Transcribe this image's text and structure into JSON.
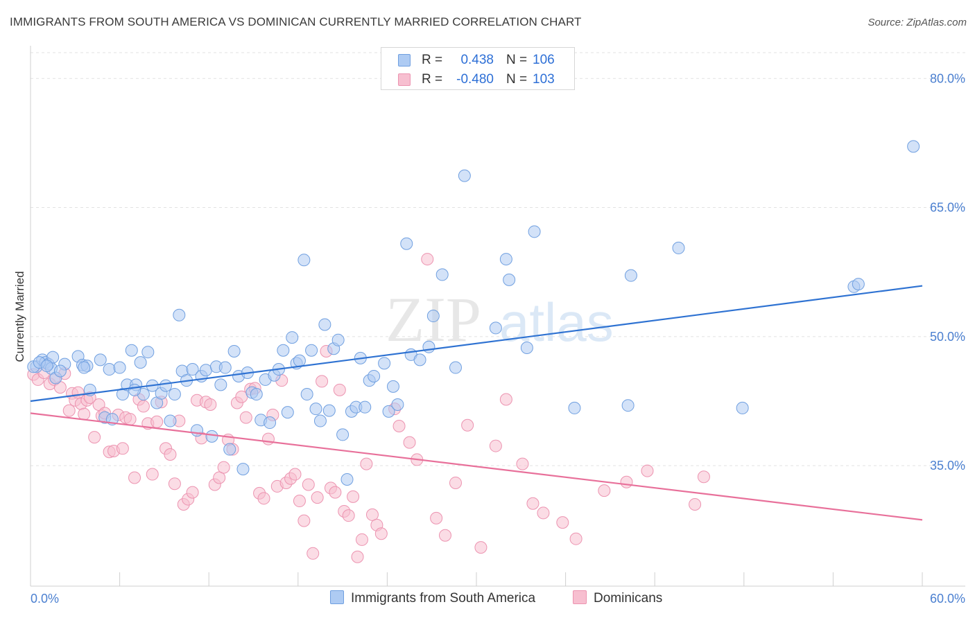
{
  "title": "IMMIGRANTS FROM SOUTH AMERICA VS DOMINICAN CURRENTLY MARRIED CORRELATION CHART",
  "source": "Source: ZipAtlas.com",
  "watermark": {
    "zip": "ZIP",
    "atlas": "atlas"
  },
  "legend": {
    "rows": [
      {
        "r_label": "R =",
        "r_value": "0.438",
        "n_label": "N =",
        "n_value": "106"
      },
      {
        "r_label": "R =",
        "r_value": "-0.480",
        "n_label": "N =",
        "n_value": "103"
      }
    ]
  },
  "bottom_legend": {
    "blue": "Immigrants from South America",
    "pink": "Dominicans"
  },
  "colors": {
    "blue_fill": "#aecbf3",
    "blue_stroke": "#6f9fe0",
    "blue_line": "#2e72d2",
    "pink_fill": "#f7bfd0",
    "pink_stroke": "#ec93b0",
    "pink_line": "#e8709a",
    "tick_text": "#4a7fd0",
    "grid": "#e2e2e2"
  },
  "chart_data": {
    "type": "scatter",
    "title": "IMMIGRANTS FROM SOUTH AMERICA VS DOMINICAN CURRENTLY MARRIED CORRELATION CHART",
    "xlabel": "",
    "ylabel": "Currently Married",
    "xlim": [
      0,
      60
    ],
    "ylim": [
      21,
      83
    ],
    "x_tick_labels": [
      "0.0%",
      "60.0%"
    ],
    "y_ticks": [
      35,
      50,
      65,
      80
    ],
    "y_tick_labels": [
      "35.0%",
      "50.0%",
      "65.0%",
      "80.0%"
    ],
    "grid": true,
    "legend_position": "top-center",
    "series": [
      {
        "name": "Immigrants from South America",
        "color": "#6f9fe0",
        "trendline": {
          "x": [
            0,
            60
          ],
          "y": [
            42.5,
            55.9
          ]
        },
        "points": [
          [
            0.4,
            46.5
          ],
          [
            0.8,
            47.3
          ],
          [
            1.0,
            47.0
          ],
          [
            1.2,
            46.8
          ],
          [
            1.4,
            46.3
          ],
          [
            1.5,
            47.6
          ],
          [
            1.7,
            45.2
          ],
          [
            2.3,
            46.8
          ],
          [
            3.2,
            47.7
          ],
          [
            3.5,
            46.7
          ],
          [
            3.8,
            46.6
          ],
          [
            4.0,
            43.8
          ],
          [
            4.7,
            47.3
          ],
          [
            5.0,
            40.6
          ],
          [
            5.3,
            46.2
          ],
          [
            5.5,
            40.4
          ],
          [
            6.0,
            46.4
          ],
          [
            6.2,
            43.3
          ],
          [
            6.5,
            44.4
          ],
          [
            6.8,
            48.4
          ],
          [
            7.1,
            44.4
          ],
          [
            7.4,
            47.0
          ],
          [
            7.6,
            43.3
          ],
          [
            7.9,
            48.2
          ],
          [
            8.2,
            44.3
          ],
          [
            8.5,
            42.3
          ],
          [
            8.8,
            43.4
          ],
          [
            9.1,
            44.3
          ],
          [
            9.4,
            40.2
          ],
          [
            9.7,
            43.3
          ],
          [
            10.0,
            52.5
          ],
          [
            10.2,
            46.0
          ],
          [
            10.5,
            44.9
          ],
          [
            10.9,
            46.2
          ],
          [
            11.2,
            39.1
          ],
          [
            11.5,
            45.4
          ],
          [
            11.8,
            46.1
          ],
          [
            12.2,
            38.4
          ],
          [
            12.5,
            46.5
          ],
          [
            12.8,
            44.4
          ],
          [
            13.1,
            46.4
          ],
          [
            13.4,
            36.9
          ],
          [
            13.7,
            48.3
          ],
          [
            14.0,
            45.4
          ],
          [
            14.3,
            34.6
          ],
          [
            14.6,
            45.8
          ],
          [
            14.9,
            43.5
          ],
          [
            15.2,
            43.3
          ],
          [
            15.5,
            40.3
          ],
          [
            15.8,
            45.0
          ],
          [
            16.1,
            40.0
          ],
          [
            16.4,
            45.5
          ],
          [
            16.7,
            46.2
          ],
          [
            17.0,
            48.4
          ],
          [
            17.3,
            41.2
          ],
          [
            17.6,
            49.9
          ],
          [
            17.9,
            46.9
          ],
          [
            18.1,
            47.2
          ],
          [
            18.4,
            58.9
          ],
          [
            18.6,
            43.3
          ],
          [
            18.9,
            48.4
          ],
          [
            19.2,
            41.6
          ],
          [
            19.5,
            40.2
          ],
          [
            19.8,
            51.4
          ],
          [
            20.1,
            41.4
          ],
          [
            20.4,
            48.6
          ],
          [
            20.7,
            49.6
          ],
          [
            21.0,
            38.6
          ],
          [
            21.3,
            33.4
          ],
          [
            21.6,
            41.3
          ],
          [
            21.9,
            41.8
          ],
          [
            22.2,
            47.5
          ],
          [
            22.5,
            41.8
          ],
          [
            22.8,
            44.9
          ],
          [
            23.1,
            45.4
          ],
          [
            23.8,
            46.9
          ],
          [
            24.1,
            41.3
          ],
          [
            24.4,
            44.2
          ],
          [
            24.7,
            42.1
          ],
          [
            25.3,
            60.8
          ],
          [
            25.6,
            47.9
          ],
          [
            26.2,
            47.3
          ],
          [
            26.8,
            48.8
          ],
          [
            27.1,
            52.4
          ],
          [
            27.7,
            57.2
          ],
          [
            28.6,
            46.4
          ],
          [
            29.2,
            68.7
          ],
          [
            31.3,
            51.0
          ],
          [
            32.0,
            59.0
          ],
          [
            32.2,
            56.6
          ],
          [
            33.4,
            48.7
          ],
          [
            33.9,
            62.2
          ],
          [
            36.6,
            41.7
          ],
          [
            40.2,
            42.0
          ],
          [
            40.4,
            57.1
          ],
          [
            43.6,
            60.3
          ],
          [
            47.9,
            41.7
          ],
          [
            55.4,
            55.8
          ],
          [
            55.7,
            56.1
          ],
          [
            59.4,
            72.1
          ],
          [
            0.2,
            46.5
          ],
          [
            0.6,
            47.0
          ],
          [
            1.1,
            46.6
          ],
          [
            2.0,
            46.0
          ],
          [
            3.6,
            46.4
          ],
          [
            7.0,
            43.8
          ]
        ]
      },
      {
        "name": "Dominicans",
        "color": "#ec93b0",
        "trendline": {
          "x": [
            0,
            60
          ],
          "y": [
            41.1,
            28.7
          ]
        },
        "points": [
          [
            0.2,
            45.6
          ],
          [
            0.5,
            45.0
          ],
          [
            0.9,
            45.8
          ],
          [
            1.3,
            44.5
          ],
          [
            1.6,
            45.0
          ],
          [
            2.0,
            44.1
          ],
          [
            2.3,
            45.7
          ],
          [
            2.6,
            41.4
          ],
          [
            2.8,
            43.4
          ],
          [
            3.0,
            42.6
          ],
          [
            3.2,
            43.5
          ],
          [
            3.4,
            42.2
          ],
          [
            3.6,
            41.0
          ],
          [
            3.8,
            42.6
          ],
          [
            4.0,
            42.9
          ],
          [
            4.3,
            38.3
          ],
          [
            4.6,
            42.1
          ],
          [
            4.8,
            40.8
          ],
          [
            5.0,
            41.1
          ],
          [
            5.3,
            36.6
          ],
          [
            5.6,
            36.7
          ],
          [
            5.9,
            40.9
          ],
          [
            6.2,
            37.0
          ],
          [
            6.4,
            40.6
          ],
          [
            6.7,
            40.4
          ],
          [
            7.0,
            33.6
          ],
          [
            7.3,
            42.7
          ],
          [
            7.6,
            41.9
          ],
          [
            7.9,
            39.9
          ],
          [
            8.2,
            34.0
          ],
          [
            8.5,
            40.1
          ],
          [
            8.8,
            42.4
          ],
          [
            9.1,
            37.0
          ],
          [
            9.4,
            36.3
          ],
          [
            9.7,
            32.9
          ],
          [
            10.0,
            40.2
          ],
          [
            10.3,
            30.5
          ],
          [
            10.6,
            31.1
          ],
          [
            10.9,
            31.9
          ],
          [
            11.2,
            42.6
          ],
          [
            11.5,
            38.2
          ],
          [
            11.8,
            42.4
          ],
          [
            12.1,
            42.1
          ],
          [
            12.4,
            32.8
          ],
          [
            12.7,
            33.6
          ],
          [
            13.0,
            34.8
          ],
          [
            13.3,
            38.0
          ],
          [
            13.6,
            36.9
          ],
          [
            13.9,
            42.3
          ],
          [
            14.2,
            43.0
          ],
          [
            14.5,
            40.6
          ],
          [
            14.8,
            43.9
          ],
          [
            15.1,
            44.0
          ],
          [
            15.4,
            31.8
          ],
          [
            15.7,
            31.2
          ],
          [
            16.0,
            38.1
          ],
          [
            16.3,
            40.9
          ],
          [
            16.6,
            32.6
          ],
          [
            16.9,
            44.9
          ],
          [
            17.2,
            33.0
          ],
          [
            17.5,
            33.5
          ],
          [
            17.8,
            34.0
          ],
          [
            18.1,
            30.9
          ],
          [
            18.4,
            28.6
          ],
          [
            18.7,
            32.8
          ],
          [
            19.0,
            24.8
          ],
          [
            19.3,
            31.3
          ],
          [
            19.6,
            44.8
          ],
          [
            19.9,
            48.3
          ],
          [
            20.2,
            32.4
          ],
          [
            20.5,
            31.9
          ],
          [
            20.8,
            43.8
          ],
          [
            21.1,
            29.7
          ],
          [
            21.4,
            29.2
          ],
          [
            21.7,
            31.4
          ],
          [
            22.0,
            24.4
          ],
          [
            22.3,
            26.4
          ],
          [
            22.6,
            35.2
          ],
          [
            23.0,
            29.3
          ],
          [
            23.3,
            28.1
          ],
          [
            23.6,
            27.1
          ],
          [
            24.5,
            41.6
          ],
          [
            24.8,
            39.6
          ],
          [
            25.5,
            37.7
          ],
          [
            26.0,
            35.7
          ],
          [
            26.7,
            59.0
          ],
          [
            27.3,
            28.9
          ],
          [
            27.9,
            26.9
          ],
          [
            28.6,
            33.0
          ],
          [
            29.4,
            39.7
          ],
          [
            30.3,
            25.5
          ],
          [
            31.3,
            37.3
          ],
          [
            32.0,
            42.7
          ],
          [
            33.1,
            35.2
          ],
          [
            33.8,
            30.6
          ],
          [
            34.5,
            29.5
          ],
          [
            35.8,
            28.4
          ],
          [
            36.7,
            26.5
          ],
          [
            38.6,
            32.1
          ],
          [
            40.1,
            33.1
          ],
          [
            41.5,
            34.4
          ],
          [
            44.7,
            30.5
          ],
          [
            45.3,
            33.7
          ]
        ]
      }
    ]
  }
}
